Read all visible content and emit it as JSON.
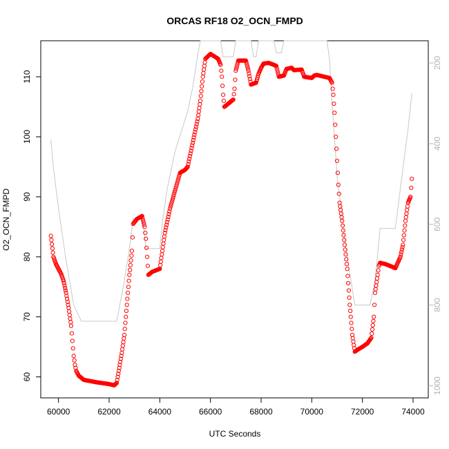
{
  "chart_data": {
    "type": "scatter",
    "title": "ORCAS RF18 O2_OCN_FMPD",
    "xlabel": "UTC Seconds",
    "ylabel": "O2_OCN_FMPD",
    "xlim": [
      59300,
      74600
    ],
    "ylim": [
      56.5,
      116
    ],
    "xticks": [
      60000,
      62000,
      64000,
      66000,
      68000,
      70000,
      72000,
      74000
    ],
    "yticks": [
      60,
      70,
      80,
      90,
      100,
      110
    ],
    "y2lim": [
      1030,
      145
    ],
    "y2ticks": [
      200,
      400,
      600,
      800,
      1000
    ],
    "grid": false,
    "series": [
      {
        "name": "",
        "color": "#ff0000",
        "marker": "open-circle",
        "points": [
          [
            59700,
            83.5
          ],
          [
            59800,
            80
          ],
          [
            59900,
            78.8
          ],
          [
            60000,
            78
          ],
          [
            60100,
            77.2
          ],
          [
            60200,
            76
          ],
          [
            60300,
            74
          ],
          [
            60400,
            71.5
          ],
          [
            60500,
            68.5
          ],
          [
            60550,
            66
          ],
          [
            60600,
            63.5
          ],
          [
            60650,
            62
          ],
          [
            60700,
            61
          ],
          [
            60800,
            60.2
          ],
          [
            61000,
            59.5
          ],
          [
            61500,
            59.1
          ],
          [
            62000,
            58.8
          ],
          [
            62200,
            58.6
          ],
          [
            62300,
            59
          ],
          [
            62400,
            61.5
          ],
          [
            62500,
            64
          ],
          [
            62600,
            67
          ],
          [
            62700,
            72
          ],
          [
            62800,
            77
          ],
          [
            62900,
            81
          ],
          [
            62950,
            85.5
          ],
          [
            63100,
            86.3
          ],
          [
            63300,
            86.8
          ],
          [
            63400,
            85
          ],
          [
            63450,
            83
          ],
          [
            63500,
            80
          ],
          [
            63550,
            77
          ],
          [
            63700,
            77.5
          ],
          [
            64000,
            78
          ],
          [
            64100,
            81
          ],
          [
            64200,
            84
          ],
          [
            64400,
            88
          ],
          [
            64600,
            91
          ],
          [
            64800,
            94
          ],
          [
            65000,
            94.5
          ],
          [
            65100,
            95
          ],
          [
            65300,
            99
          ],
          [
            65500,
            103
          ],
          [
            65600,
            106
          ],
          [
            65700,
            110
          ],
          [
            65800,
            113
          ],
          [
            66000,
            113.8
          ],
          [
            66300,
            113
          ],
          [
            66400,
            112
          ],
          [
            66450,
            110
          ],
          [
            66500,
            107
          ],
          [
            66550,
            105
          ],
          [
            66700,
            105.5
          ],
          [
            66900,
            106.2
          ],
          [
            66950,
            108
          ],
          [
            67000,
            111
          ],
          [
            67100,
            112.7
          ],
          [
            67400,
            112.7
          ],
          [
            67500,
            111
          ],
          [
            67600,
            108.7
          ],
          [
            67800,
            109
          ],
          [
            67900,
            110.5
          ],
          [
            68000,
            111.5
          ],
          [
            68100,
            112.2
          ],
          [
            68300,
            112.3
          ],
          [
            68500,
            112
          ],
          [
            68600,
            111.8
          ],
          [
            68700,
            110
          ],
          [
            68900,
            110.2
          ],
          [
            69000,
            111.3
          ],
          [
            69200,
            111.5
          ],
          [
            69300,
            111.1
          ],
          [
            69600,
            111.2
          ],
          [
            69700,
            110
          ],
          [
            70000,
            109.8
          ],
          [
            70100,
            110.2
          ],
          [
            70200,
            110.3
          ],
          [
            70400,
            110.1
          ],
          [
            70700,
            109.8
          ],
          [
            70800,
            109
          ],
          [
            70850,
            107
          ],
          [
            70900,
            104
          ],
          [
            70950,
            100
          ],
          [
            71000,
            96
          ],
          [
            71050,
            92
          ],
          [
            71100,
            89
          ],
          [
            71200,
            86
          ],
          [
            71300,
            82
          ],
          [
            71400,
            78
          ],
          [
            71500,
            72
          ],
          [
            71600,
            67
          ],
          [
            71700,
            64.2
          ],
          [
            71800,
            64.5
          ],
          [
            72000,
            65
          ],
          [
            72200,
            65.6
          ],
          [
            72350,
            66.5
          ],
          [
            72450,
            70
          ],
          [
            72500,
            74
          ],
          [
            72600,
            77
          ],
          [
            72650,
            78.5
          ],
          [
            72700,
            79
          ],
          [
            72900,
            78.8
          ],
          [
            73200,
            78.3
          ],
          [
            73300,
            78.1
          ],
          [
            73500,
            80
          ],
          [
            73600,
            82
          ],
          [
            73700,
            86
          ],
          [
            73800,
            89
          ],
          [
            73900,
            90
          ],
          [
            73950,
            93
          ]
        ]
      },
      {
        "name": "",
        "color": "#c8c8c8",
        "axis": "right",
        "type": "line",
        "points": [
          [
            59700,
            390
          ],
          [
            59800,
            460
          ],
          [
            60000,
            560
          ],
          [
            60300,
            690
          ],
          [
            60600,
            800
          ],
          [
            60900,
            840
          ],
          [
            61300,
            840
          ],
          [
            62000,
            840
          ],
          [
            62300,
            840
          ],
          [
            62600,
            740
          ],
          [
            62800,
            660
          ],
          [
            62950,
            585
          ],
          [
            63300,
            585
          ],
          [
            63400,
            625
          ],
          [
            63450,
            660
          ],
          [
            63700,
            660
          ],
          [
            64000,
            660
          ],
          [
            64100,
            595
          ],
          [
            64300,
            510
          ],
          [
            64600,
            420
          ],
          [
            64900,
            360
          ],
          [
            65100,
            320
          ],
          [
            65300,
            260
          ],
          [
            65500,
            180
          ],
          [
            65600,
            140
          ],
          [
            66000,
            140
          ],
          [
            66400,
            140
          ],
          [
            66500,
            185
          ],
          [
            66900,
            185
          ],
          [
            67000,
            140
          ],
          [
            67300,
            140
          ],
          [
            67600,
            140
          ],
          [
            67700,
            185
          ],
          [
            67800,
            185
          ],
          [
            67900,
            140
          ],
          [
            68200,
            140
          ],
          [
            68300,
            140
          ],
          [
            68500,
            140
          ],
          [
            68600,
            175
          ],
          [
            68800,
            175
          ],
          [
            68900,
            140
          ],
          [
            70600,
            140
          ],
          [
            70700,
            190
          ],
          [
            70800,
            300
          ],
          [
            71000,
            480
          ],
          [
            71300,
            640
          ],
          [
            71600,
            760
          ],
          [
            71700,
            800
          ],
          [
            72300,
            800
          ],
          [
            72500,
            740
          ],
          [
            72700,
            610
          ],
          [
            73300,
            610
          ],
          [
            73500,
            510
          ],
          [
            73800,
            365
          ],
          [
            73950,
            275
          ]
        ]
      }
    ]
  }
}
